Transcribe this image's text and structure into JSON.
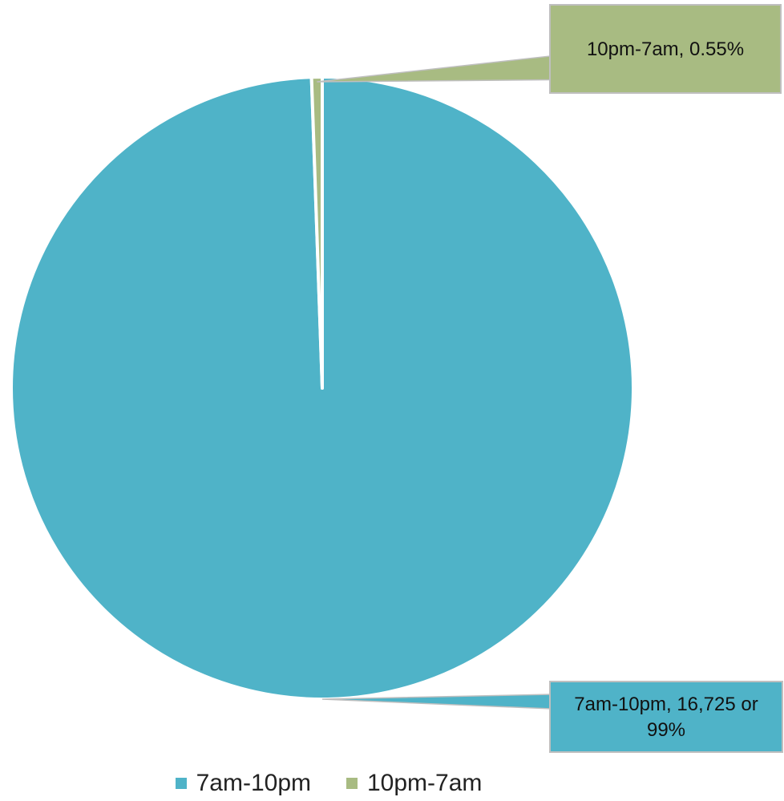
{
  "chart_data": {
    "type": "pie",
    "title": "",
    "series": [
      {
        "slices": [
          {
            "label": "7am-10pm",
            "value": 99.45,
            "color": "#4fb3c8",
            "data_label_lines": [
              "7am-10pm, 16,725 or",
              "99%"
            ]
          },
          {
            "label": "10pm-7am",
            "value": 0.55,
            "color": "#a8bb82",
            "data_label_lines": [
              "10pm-7am, 0.55%"
            ]
          }
        ]
      }
    ],
    "legend": {
      "position": "bottom",
      "entries": [
        {
          "label": "7am-10pm",
          "color": "#4fb3c8"
        },
        {
          "label": "10pm-7am",
          "color": "#a8bb82"
        }
      ]
    }
  }
}
